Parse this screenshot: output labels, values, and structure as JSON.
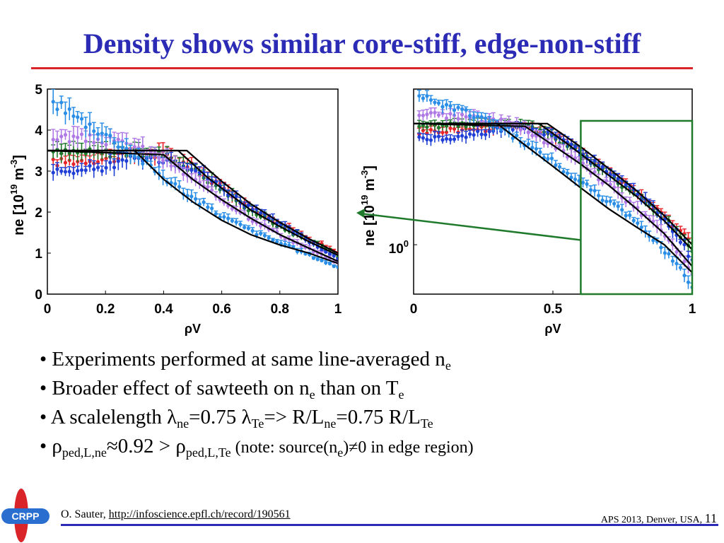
{
  "title": "Density shows similar core-stiff, edge-non-stiff",
  "colors": {
    "title": "#2b2bb5",
    "rule": "#d9252a",
    "black": "#000000",
    "red": "#e8242a",
    "green": "#1f7a2c",
    "blue": "#1f3fd6",
    "purple": "#b07ae6",
    "cyan": "#2a8ee6",
    "zoom_box": "#1f7a2c"
  },
  "chart_data": [
    {
      "type": "line",
      "panel": "left",
      "xlabel": "ρV",
      "ylabel_main": "ne [10",
      "ylabel_exp": "19",
      "ylabel_unit": " m",
      "ylabel_unit_exp": "-3",
      "ylabel_close": "]",
      "xlim": [
        0,
        1
      ],
      "ylim": [
        0,
        5
      ],
      "xticks": [
        "0",
        "0.2",
        "0.4",
        "0.6",
        "0.8",
        "1"
      ],
      "yticks": [
        "0",
        "1",
        "2",
        "3",
        "4",
        "5"
      ],
      "series": [
        {
          "color": "red",
          "points": [
            [
              0.0,
              3.2
            ],
            [
              0.1,
              3.25
            ],
            [
              0.2,
              3.3
            ],
            [
              0.3,
              3.35
            ],
            [
              0.4,
              3.4
            ],
            [
              0.5,
              3.1
            ],
            [
              0.6,
              2.6
            ],
            [
              0.7,
              2.1
            ],
            [
              0.8,
              1.7
            ],
            [
              0.9,
              1.35
            ],
            [
              1.0,
              1.0
            ]
          ]
        },
        {
          "color": "green",
          "points": [
            [
              0.0,
              3.45
            ],
            [
              0.1,
              3.45
            ],
            [
              0.2,
              3.45
            ],
            [
              0.3,
              3.45
            ],
            [
              0.4,
              3.4
            ],
            [
              0.5,
              3.05
            ],
            [
              0.6,
              2.55
            ],
            [
              0.7,
              2.05
            ],
            [
              0.8,
              1.65
            ],
            [
              0.9,
              1.3
            ],
            [
              1.0,
              0.95
            ]
          ]
        },
        {
          "color": "blue",
          "points": [
            [
              0.0,
              3.0
            ],
            [
              0.1,
              3.0
            ],
            [
              0.2,
              3.1
            ],
            [
              0.3,
              3.3
            ],
            [
              0.4,
              3.3
            ],
            [
              0.5,
              3.1
            ],
            [
              0.6,
              2.6
            ],
            [
              0.7,
              2.1
            ],
            [
              0.8,
              1.7
            ],
            [
              0.9,
              1.3
            ],
            [
              1.0,
              0.85
            ]
          ]
        },
        {
          "color": "purple",
          "points": [
            [
              0.0,
              3.85
            ],
            [
              0.1,
              3.8
            ],
            [
              0.2,
              3.75
            ],
            [
              0.3,
              3.6
            ],
            [
              0.4,
              3.3
            ],
            [
              0.5,
              2.8
            ],
            [
              0.6,
              2.3
            ],
            [
              0.7,
              1.85
            ],
            [
              0.8,
              1.45
            ],
            [
              0.9,
              1.1
            ],
            [
              1.0,
              0.75
            ]
          ]
        },
        {
          "color": "cyan",
          "points": [
            [
              0.0,
              4.7
            ],
            [
              0.05,
              4.6
            ],
            [
              0.1,
              4.3
            ],
            [
              0.2,
              3.9
            ],
            [
              0.3,
              3.4
            ],
            [
              0.4,
              2.85
            ],
            [
              0.5,
              2.35
            ],
            [
              0.6,
              1.9
            ],
            [
              0.7,
              1.55
            ],
            [
              0.8,
              1.25
            ],
            [
              0.9,
              0.95
            ],
            [
              1.0,
              0.65
            ]
          ]
        }
      ],
      "fits": [
        {
          "points": [
            [
              0.0,
              3.5
            ],
            [
              0.48,
              3.5
            ],
            [
              0.6,
              2.75
            ],
            [
              0.7,
              2.2
            ],
            [
              0.8,
              1.75
            ],
            [
              0.9,
              1.35
            ],
            [
              1.0,
              1.0
            ]
          ]
        },
        {
          "points": [
            [
              0.0,
              3.5
            ],
            [
              0.45,
              3.5
            ],
            [
              0.55,
              2.85
            ],
            [
              0.7,
              2.05
            ],
            [
              0.8,
              1.65
            ],
            [
              0.9,
              1.28
            ],
            [
              1.0,
              0.95
            ]
          ]
        },
        {
          "points": [
            [
              0.0,
              3.5
            ],
            [
              0.4,
              3.4
            ],
            [
              0.5,
              2.8
            ],
            [
              0.6,
              2.3
            ],
            [
              0.7,
              1.85
            ],
            [
              0.8,
              1.45
            ],
            [
              0.9,
              1.12
            ],
            [
              1.0,
              0.8
            ]
          ]
        },
        {
          "points": [
            [
              0.0,
              3.5
            ],
            [
              0.3,
              3.5
            ],
            [
              0.4,
              2.8
            ],
            [
              0.5,
              2.25
            ],
            [
              0.6,
              1.8
            ],
            [
              0.7,
              1.45
            ],
            [
              0.8,
              1.2
            ],
            [
              0.9,
              1.0
            ],
            [
              1.0,
              0.75
            ]
          ]
        }
      ]
    },
    {
      "type": "line",
      "panel": "right",
      "log_y": true,
      "xlabel": "ρV",
      "ylabel_main": "ne [10",
      "ylabel_exp": "19",
      "ylabel_unit": " m",
      "ylabel_unit_exp": "-3",
      "ylabel_close": "]",
      "xlim": [
        0,
        1
      ],
      "ylim": [
        0.6,
        5
      ],
      "xticks": [
        "0",
        "0.5",
        "1"
      ],
      "ytick_base": "10",
      "ytick_exp": "0",
      "ytick_value": 1,
      "zoom_box_x": [
        0.6,
        1.0
      ],
      "zoom_box_y": [
        0.6,
        3.6
      ],
      "series": [
        {
          "color": "red",
          "points": [
            [
              0.0,
              3.2
            ],
            [
              0.1,
              3.25
            ],
            [
              0.2,
              3.3
            ],
            [
              0.3,
              3.35
            ],
            [
              0.4,
              3.4
            ],
            [
              0.5,
              3.1
            ],
            [
              0.6,
              2.6
            ],
            [
              0.7,
              2.1
            ],
            [
              0.8,
              1.7
            ],
            [
              0.9,
              1.35
            ],
            [
              1.0,
              1.0
            ]
          ]
        },
        {
          "color": "green",
          "points": [
            [
              0.0,
              3.45
            ],
            [
              0.1,
              3.45
            ],
            [
              0.2,
              3.45
            ],
            [
              0.3,
              3.45
            ],
            [
              0.4,
              3.4
            ],
            [
              0.5,
              3.05
            ],
            [
              0.6,
              2.55
            ],
            [
              0.7,
              2.05
            ],
            [
              0.8,
              1.65
            ],
            [
              0.9,
              1.3
            ],
            [
              1.0,
              0.95
            ]
          ]
        },
        {
          "color": "blue",
          "points": [
            [
              0.0,
              3.0
            ],
            [
              0.1,
              3.0
            ],
            [
              0.2,
              3.1
            ],
            [
              0.3,
              3.3
            ],
            [
              0.4,
              3.3
            ],
            [
              0.5,
              3.1
            ],
            [
              0.6,
              2.6
            ],
            [
              0.7,
              2.1
            ],
            [
              0.8,
              1.7
            ],
            [
              0.9,
              1.3
            ],
            [
              1.0,
              0.85
            ]
          ]
        },
        {
          "color": "purple",
          "points": [
            [
              0.0,
              3.85
            ],
            [
              0.1,
              3.8
            ],
            [
              0.2,
              3.75
            ],
            [
              0.3,
              3.6
            ],
            [
              0.4,
              3.3
            ],
            [
              0.5,
              2.8
            ],
            [
              0.6,
              2.3
            ],
            [
              0.7,
              1.85
            ],
            [
              0.8,
              1.45
            ],
            [
              0.9,
              1.1
            ],
            [
              1.0,
              0.75
            ]
          ]
        },
        {
          "color": "cyan",
          "points": [
            [
              0.0,
              4.7
            ],
            [
              0.05,
              4.6
            ],
            [
              0.1,
              4.3
            ],
            [
              0.2,
              3.9
            ],
            [
              0.3,
              3.4
            ],
            [
              0.4,
              2.85
            ],
            [
              0.5,
              2.35
            ],
            [
              0.6,
              1.9
            ],
            [
              0.7,
              1.55
            ],
            [
              0.8,
              1.25
            ],
            [
              0.9,
              0.95
            ],
            [
              1.0,
              0.65
            ]
          ]
        }
      ],
      "fits": [
        {
          "points": [
            [
              0.0,
              3.5
            ],
            [
              0.48,
              3.5
            ],
            [
              0.6,
              2.75
            ],
            [
              0.7,
              2.2
            ],
            [
              0.8,
              1.75
            ],
            [
              0.9,
              1.35
            ],
            [
              1.0,
              1.0
            ]
          ]
        },
        {
          "points": [
            [
              0.0,
              3.5
            ],
            [
              0.45,
              3.5
            ],
            [
              0.55,
              2.85
            ],
            [
              0.7,
              2.05
            ],
            [
              0.8,
              1.65
            ],
            [
              0.9,
              1.28
            ],
            [
              1.0,
              0.95
            ]
          ]
        },
        {
          "points": [
            [
              0.0,
              3.5
            ],
            [
              0.4,
              3.4
            ],
            [
              0.5,
              2.8
            ],
            [
              0.6,
              2.3
            ],
            [
              0.7,
              1.85
            ],
            [
              0.8,
              1.45
            ],
            [
              0.9,
              1.12
            ],
            [
              1.0,
              0.8
            ]
          ]
        },
        {
          "points": [
            [
              0.0,
              3.5
            ],
            [
              0.3,
              3.5
            ],
            [
              0.4,
              2.8
            ],
            [
              0.5,
              2.25
            ],
            [
              0.6,
              1.8
            ],
            [
              0.7,
              1.45
            ],
            [
              0.8,
              1.2
            ],
            [
              0.9,
              1.0
            ],
            [
              1.0,
              0.75
            ]
          ]
        }
      ]
    }
  ],
  "bullets": [
    {
      "parts": [
        {
          "t": "• Experiments performed at same line-averaged n"
        },
        {
          "t": "e",
          "sub": true
        }
      ]
    },
    {
      "parts": [
        {
          "t": "• Broader effect of sawteeth on n"
        },
        {
          "t": "e",
          "sub": true
        },
        {
          "t": " than on T"
        },
        {
          "t": "e",
          "sub": true
        }
      ]
    },
    {
      "parts": [
        {
          "t": "• A scalelength λ"
        },
        {
          "t": "ne",
          "sub": true
        },
        {
          "t": "=0.75 λ"
        },
        {
          "t": "Te",
          "sub": true
        },
        {
          "t": "=> R/L"
        },
        {
          "t": "ne",
          "sub": true
        },
        {
          "t": "=0.75 R/L"
        },
        {
          "t": "Te",
          "sub": true
        }
      ]
    },
    {
      "parts": [
        {
          "t": "• ρ"
        },
        {
          "t": "ped,L,ne",
          "sub": true
        },
        {
          "t": "≈0.92  > ρ"
        },
        {
          "t": "ped,L,Te",
          "sub": true
        },
        {
          "t": " (note: source(n",
          "note": true
        },
        {
          "t": "e",
          "sub": true,
          "note": true
        },
        {
          "t": ")≠0 in edge region)",
          "note": true
        }
      ]
    }
  ],
  "footer": {
    "author": "O. Sauter, ",
    "link": "http://infoscience.epfl.ch/record/190561",
    "conference": "APS 2013, Denver, USA, ",
    "page": "11"
  },
  "logo": {
    "text": "CRPP",
    "colors": {
      "red": "#d9252a",
      "blue": "#2a6fd0"
    }
  }
}
